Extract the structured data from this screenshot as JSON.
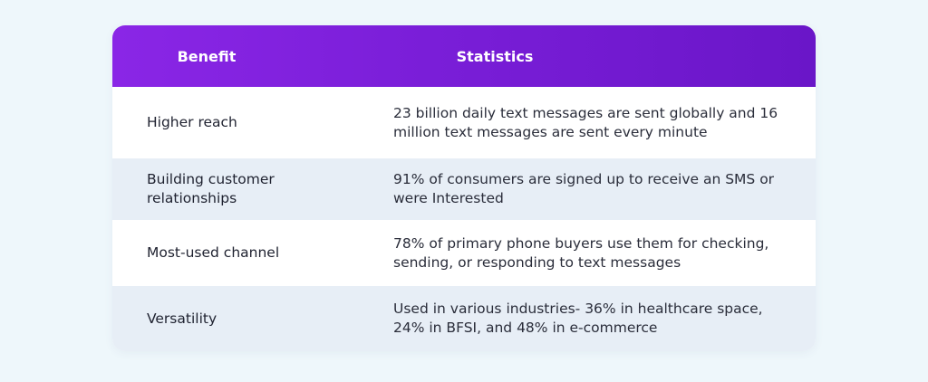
{
  "table": {
    "headers": {
      "benefit": "Benefit",
      "statistics": "Statistics"
    },
    "rows": [
      {
        "benefit": "Higher reach",
        "statistics": "23 billion daily text messages are sent globally and 16 million text messages are sent every minute"
      },
      {
        "benefit": "Building customer relationships",
        "statistics": "91% of consumers are signed up to receive an SMS or were Interested"
      },
      {
        "benefit": "Most-used channel",
        "statistics": "78% of primary phone buyers use them for checking, sending, or responding to text messages"
      },
      {
        "benefit": "Versatility",
        "statistics": "Used in various industries- 36% in healthcare space, 24% in BFSI, and 48% in e-commerce"
      }
    ]
  },
  "colors": {
    "header_gradient_start": "#8a26e6",
    "header_gradient_end": "#6a16c8",
    "alt_row": "#e7eef6",
    "page_background": "#eef7fb"
  }
}
